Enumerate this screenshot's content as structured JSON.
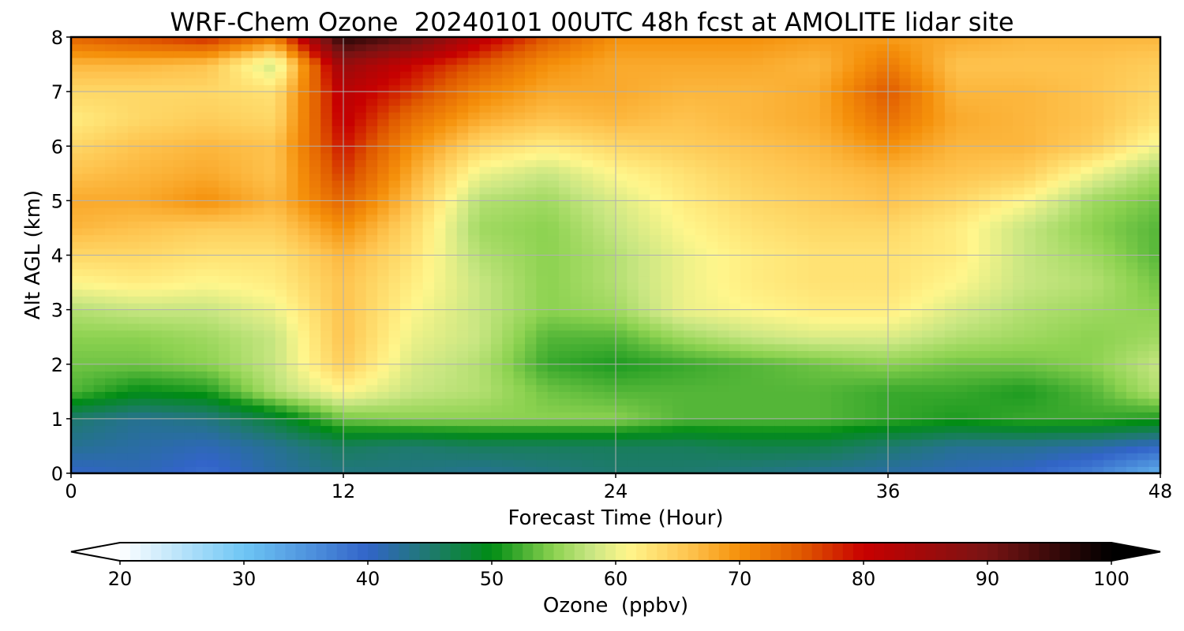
{
  "chart_data": {
    "type": "heatmap",
    "title": "WRF-Chem Ozone  20240101 00UTC 48h fcst at AMOLITE lidar site",
    "xlabel": "Forecast Time (Hour)",
    "ylabel": "Alt AGL (km)",
    "xlim": [
      0,
      48
    ],
    "ylim": [
      0,
      8
    ],
    "xticks": [
      0,
      12,
      24,
      36,
      48
    ],
    "xtick_labels": [
      "0",
      "12",
      "24",
      "36",
      "48"
    ],
    "yticks": [
      0,
      1,
      2,
      3,
      4,
      5,
      6,
      7,
      8
    ],
    "ytick_labels": [
      "0",
      "1",
      "2",
      "3",
      "4",
      "5",
      "6",
      "7",
      "8"
    ],
    "grid": true,
    "colorbar": {
      "label": "Ozone  (ppbv)",
      "min": 20,
      "max": 100,
      "extend": "both",
      "ticks": [
        20,
        30,
        40,
        50,
        60,
        70,
        80,
        90,
        100
      ],
      "tick_labels": [
        "20",
        "30",
        "40",
        "50",
        "60",
        "70",
        "80",
        "90",
        "100"
      ],
      "color_stops": [
        {
          "v": 20,
          "c": "#ffffff"
        },
        {
          "v": 30,
          "c": "#6ec6f5"
        },
        {
          "v": 40,
          "c": "#3264c8"
        },
        {
          "v": 45,
          "c": "#1e7a6e"
        },
        {
          "v": 50,
          "c": "#008c14"
        },
        {
          "v": 55,
          "c": "#8cd250"
        },
        {
          "v": 58,
          "c": "#c8e682"
        },
        {
          "v": 61,
          "c": "#fff68c"
        },
        {
          "v": 66,
          "c": "#fec34e"
        },
        {
          "v": 70,
          "c": "#f5900a"
        },
        {
          "v": 75,
          "c": "#e05a00"
        },
        {
          "v": 80,
          "c": "#c80000"
        },
        {
          "v": 90,
          "c": "#781414"
        },
        {
          "v": 100,
          "c": "#000000"
        }
      ]
    },
    "x": [
      0,
      3,
      6,
      9,
      12,
      15,
      18,
      21,
      24,
      27,
      30,
      33,
      36,
      39,
      42,
      45,
      48
    ],
    "y": [
      0,
      0.5,
      1,
      1.5,
      2,
      2.5,
      3,
      3.5,
      4,
      4.5,
      5,
      5.5,
      6,
      6.5,
      7,
      7.5,
      8
    ],
    "z": [
      [
        40,
        41,
        39,
        42,
        44,
        44,
        43,
        44,
        45,
        45,
        44,
        43,
        42,
        41,
        40,
        37,
        32
      ],
      [
        43,
        42,
        41,
        43,
        46,
        45,
        46,
        46,
        46,
        46,
        47,
        47,
        45,
        43,
        43,
        42,
        40
      ],
      [
        45,
        43,
        44,
        48,
        54,
        55,
        55,
        55,
        55,
        53,
        53,
        53,
        52,
        51,
        52,
        52,
        51
      ],
      [
        53,
        50,
        51,
        57,
        61,
        58,
        57,
        54,
        53,
        53,
        53,
        53,
        52,
        52,
        51,
        53,
        57
      ],
      [
        54,
        54,
        55,
        58,
        65,
        59,
        57,
        52,
        51,
        52,
        53,
        54,
        55,
        54,
        54,
        55,
        58
      ],
      [
        55,
        55,
        56,
        58,
        66,
        60,
        58,
        53,
        53,
        56,
        58,
        59,
        59,
        57,
        56,
        55,
        56
      ],
      [
        57,
        58,
        58,
        60,
        66,
        61,
        58,
        55,
        56,
        60,
        61,
        62,
        62,
        59,
        57,
        56,
        55
      ],
      [
        61,
        62,
        61,
        62,
        66,
        62,
        58,
        55,
        57,
        60,
        62,
        63,
        63,
        61,
        58,
        57,
        54
      ],
      [
        64,
        64,
        63,
        63,
        67,
        63,
        57,
        55,
        57,
        60,
        62,
        63,
        63,
        62,
        58,
        56,
        53
      ],
      [
        67,
        66,
        65,
        65,
        70,
        64,
        56,
        55,
        58,
        61,
        63,
        64,
        64,
        62,
        58,
        55,
        53
      ],
      [
        68,
        68,
        70,
        67,
        74,
        66,
        57,
        56,
        59,
        62,
        64,
        65,
        66,
        64,
        61,
        56,
        54
      ],
      [
        66,
        67,
        68,
        66,
        77,
        68,
        60,
        58,
        61,
        63,
        65,
        66,
        67,
        66,
        65,
        60,
        56
      ],
      [
        64,
        66,
        67,
        66,
        79,
        70,
        64,
        62,
        64,
        65,
        66,
        67,
        70,
        67,
        67,
        65,
        60
      ],
      [
        62,
        64,
        65,
        64,
        81,
        73,
        68,
        66,
        67,
        66,
        67,
        68,
        73,
        68,
        67,
        66,
        63
      ],
      [
        64,
        64,
        64,
        63,
        82,
        77,
        71,
        68,
        68,
        67,
        67,
        68,
        75,
        67,
        67,
        66,
        64
      ],
      [
        67,
        67,
        66,
        58,
        86,
        80,
        75,
        70,
        68,
        68,
        68,
        67,
        72,
        66,
        66,
        66,
        65
      ],
      [
        74,
        76,
        78,
        72,
        97,
        92,
        82,
        75,
        70,
        70,
        70,
        69,
        69,
        68,
        67,
        67,
        67
      ]
    ]
  }
}
